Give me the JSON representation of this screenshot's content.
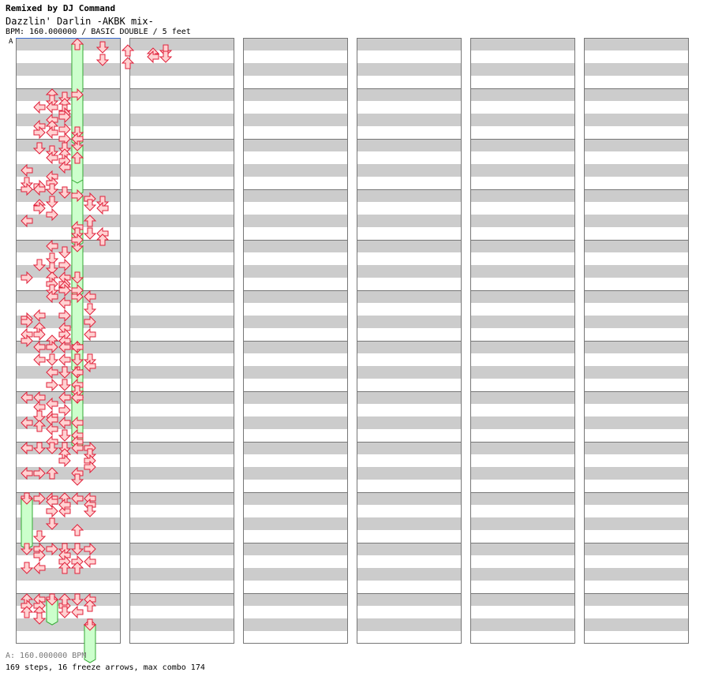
{
  "header": {
    "remix": "Remixed by DJ Command",
    "song_title": "Dazzlin' Darlin -AKBK mix-",
    "info": "BPM: 160.000000 / BASIC DOUBLE / 5 feet"
  },
  "bpm_marker": {
    "label": "A"
  },
  "footer": {
    "bpm_line": "A: 160.000000 BPM",
    "summary": "169 steps, 16 freeze arrows, max combo 174"
  },
  "colors": {
    "band": "#cccccc",
    "measure_line": "#777777",
    "arrow_fill": "#ffd2d2",
    "arrow_stroke": "#e0203a",
    "freeze_fill": "#ccffcc",
    "freeze_stroke": "#33aa33",
    "bpm_marker_line": "#3a6bd0"
  },
  "chart_data": {
    "type": "step-chart",
    "title": "Dazzlin' Darlin -AKBK mix-",
    "mode": "BASIC DOUBLE",
    "difficulty_feet": 5,
    "bpm": 160,
    "total_steps": 169,
    "freeze_arrows": 16,
    "max_combo": 174,
    "columns": 6,
    "measures_per_column": 12,
    "lanes": [
      "left",
      "down",
      "up",
      "right",
      "left",
      "down",
      "up",
      "right"
    ],
    "arrows": [
      [
        1,
        6,
        1,
        "down"
      ],
      [
        1,
        6,
        5,
        "down"
      ],
      [
        1,
        8,
        2,
        "up"
      ],
      [
        1,
        8,
        6,
        "up"
      ],
      [
        1,
        10,
        3,
        "up"
      ],
      [
        1,
        10,
        4,
        "left"
      ],
      [
        1,
        11,
        2,
        "down"
      ],
      [
        1,
        11,
        4,
        "down"
      ],
      [
        2,
        1,
        4,
        "left"
      ],
      [
        2,
        1,
        10,
        "left"
      ],
      [
        2,
        1,
        12,
        "right"
      ],
      [
        2,
        2,
        0,
        "up"
      ],
      [
        2,
        2,
        2,
        "down"
      ],
      [
        2,
        2,
        4,
        "left"
      ],
      [
        2,
        2,
        8,
        "left"
      ],
      [
        2,
        2,
        10,
        "up"
      ],
      [
        2,
        2,
        12,
        "left"
      ],
      [
        2,
        3,
        1,
        "down"
      ],
      [
        2,
        3,
        3,
        "up"
      ],
      [
        2,
        3,
        5,
        "down"
      ],
      [
        2,
        3,
        6,
        "right"
      ],
      [
        2,
        3,
        7,
        "right"
      ],
      [
        2,
        3,
        11,
        "right"
      ],
      [
        2,
        3,
        14,
        "right"
      ],
      [
        2,
        4,
        12,
        "down"
      ],
      [
        2,
        4,
        14,
        "left"
      ],
      [
        3,
        0,
        8,
        "left"
      ],
      [
        3,
        0,
        12,
        "down"
      ],
      [
        3,
        0,
        14,
        "right"
      ],
      [
        3,
        1,
        1,
        "down"
      ],
      [
        3,
        1,
        13,
        "right"
      ],
      [
        3,
        1,
        14,
        "left"
      ],
      [
        3,
        2,
        2,
        "down"
      ],
      [
        3,
        2,
        4,
        "left"
      ],
      [
        3,
        2,
        10,
        "left"
      ],
      [
        3,
        2,
        12,
        "right"
      ],
      [
        3,
        2,
        14,
        "down"
      ],
      [
        3,
        3,
        1,
        "down"
      ],
      [
        3,
        3,
        3,
        "up"
      ],
      [
        3,
        3,
        5,
        "right"
      ],
      [
        3,
        3,
        7,
        "left"
      ],
      [
        3,
        3,
        15,
        "down"
      ],
      [
        4,
        0,
        8,
        "left"
      ],
      [
        4,
        1,
        3,
        "up"
      ],
      [
        4,
        1,
        4,
        "right"
      ],
      [
        4,
        2,
        2,
        "down"
      ],
      [
        4,
        2,
        6,
        "right"
      ],
      [
        4,
        4,
        10,
        "left"
      ],
      [
        4,
        4,
        12,
        "down"
      ],
      [
        4,
        4,
        14,
        "right"
      ],
      [
        4,
        5,
        1,
        "right"
      ],
      [
        4,
        5,
        3,
        "down"
      ],
      [
        4,
        5,
        8,
        "up"
      ],
      [
        4,
        5,
        12,
        "down"
      ],
      [
        4,
        6,
        2,
        "down"
      ],
      [
        4,
        6,
        4,
        "left"
      ],
      [
        4,
        6,
        12,
        "left"
      ],
      [
        4,
        6,
        14,
        "up"
      ],
      [
        5,
        0,
        10,
        "right"
      ],
      [
        5,
        1,
        6,
        "down"
      ],
      [
        5,
        2,
        0,
        "left"
      ],
      [
        5,
        2,
        4,
        "down"
      ],
      [
        5,
        2,
        7,
        "down"
      ],
      [
        5,
        2,
        10,
        "up"
      ],
      [
        5,
        2,
        12,
        "right"
      ],
      [
        5,
        2,
        14,
        "down"
      ],
      [
        5,
        3,
        2,
        "down"
      ],
      [
        5,
        3,
        6,
        "right"
      ],
      [
        5,
        3,
        10,
        "left"
      ],
      [
        5,
        3,
        12,
        "right"
      ],
      [
        5,
        3,
        13,
        "up"
      ],
      [
        5,
        3,
        14,
        "right"
      ],
      [
        5,
        4,
        10,
        "down"
      ],
      [
        5,
        4,
        14,
        "right"
      ],
      [
        6,
        0,
        7,
        "right"
      ],
      [
        6,
        0,
        8,
        "right"
      ],
      [
        6,
        0,
        12,
        "left"
      ],
      [
        6,
        0,
        14,
        "right"
      ],
      [
        6,
        1,
        6,
        "left"
      ],
      [
        6,
        1,
        10,
        "up"
      ],
      [
        6,
        1,
        12,
        "right"
      ],
      [
        6,
        2,
        0,
        "left"
      ],
      [
        6,
        2,
        14,
        "up"
      ],
      [
        6,
        3,
        2,
        "left"
      ],
      [
        6,
        3,
        6,
        "right"
      ],
      [
        6,
        3,
        10,
        "left"
      ],
      [
        6,
        3,
        12,
        "right"
      ],
      [
        6,
        3,
        14,
        "left"
      ],
      [
        6,
        5,
        0,
        "left"
      ],
      [
        6,
        5,
        4,
        "down"
      ],
      [
        6,
        5,
        8,
        "right"
      ],
      [
        6,
        5,
        12,
        "left"
      ],
      [
        7,
        1,
        0,
        "left"
      ],
      [
        7,
        1,
        4,
        "left"
      ],
      [
        7,
        2,
        0,
        "right"
      ],
      [
        7,
        2,
        4,
        "down"
      ],
      [
        7,
        2,
        8,
        "left"
      ],
      [
        7,
        2,
        12,
        "right"
      ],
      [
        7,
        3,
        0,
        "left"
      ],
      [
        7,
        3,
        4,
        "left"
      ],
      [
        7,
        3,
        8,
        "down"
      ],
      [
        7,
        3,
        12,
        "down"
      ],
      [
        7,
        4,
        0,
        "left"
      ],
      [
        7,
        4,
        4,
        "down"
      ],
      [
        7,
        4,
        8,
        "left"
      ],
      [
        7,
        4,
        12,
        "left"
      ],
      [
        7,
        4,
        14,
        "down"
      ],
      [
        7,
        5,
        4,
        "down"
      ],
      [
        7,
        5,
        6,
        "left"
      ],
      [
        8,
        0,
        0,
        "left"
      ],
      [
        8,
        0,
        8,
        "left"
      ],
      [
        8,
        0,
        16,
        "left"
      ],
      [
        8,
        1,
        0,
        "left"
      ],
      [
        8,
        1,
        3,
        "left"
      ],
      [
        8,
        1,
        6,
        "down"
      ],
      [
        8,
        1,
        9,
        "up"
      ],
      [
        8,
        2,
        2,
        "left"
      ],
      [
        8,
        2,
        6,
        "left"
      ],
      [
        8,
        2,
        7,
        "left"
      ],
      [
        8,
        2,
        10,
        "left"
      ],
      [
        8,
        2,
        14,
        "left"
      ],
      [
        8,
        3,
        0,
        "left"
      ],
      [
        8,
        3,
        4,
        "right"
      ],
      [
        8,
        3,
        8,
        "left"
      ],
      [
        8,
        3,
        12,
        "down"
      ],
      [
        8,
        4,
        0,
        "left"
      ],
      [
        8,
        4,
        8,
        "left"
      ],
      [
        8,
        4,
        12,
        "left"
      ],
      [
        8,
        4,
        14,
        "left"
      ],
      [
        9,
        0,
        0,
        "left"
      ],
      [
        9,
        0,
        8,
        "left"
      ],
      [
        9,
        1,
        0,
        "down"
      ],
      [
        9,
        1,
        8,
        "right"
      ],
      [
        9,
        2,
        0,
        "down"
      ],
      [
        9,
        2,
        8,
        "up"
      ],
      [
        9,
        3,
        0,
        "down"
      ],
      [
        9,
        3,
        2,
        "up"
      ],
      [
        9,
        3,
        4,
        "right"
      ],
      [
        9,
        4,
        0,
        "left"
      ],
      [
        9,
        4,
        8,
        "left"
      ],
      [
        9,
        4,
        10,
        "down"
      ],
      [
        9,
        5,
        0,
        "right"
      ],
      [
        9,
        5,
        2,
        "down"
      ],
      [
        9,
        5,
        4,
        "right"
      ],
      [
        9,
        5,
        6,
        "right"
      ],
      [
        10,
        1,
        0,
        "right"
      ],
      [
        10,
        1,
        12,
        "down"
      ],
      [
        10,
        2,
        0,
        "left"
      ],
      [
        10,
        2,
        1,
        "left"
      ],
      [
        10,
        2,
        4,
        "right"
      ],
      [
        10,
        2,
        8,
        "down"
      ],
      [
        10,
        3,
        0,
        "up"
      ],
      [
        10,
        3,
        4,
        "left"
      ],
      [
        10,
        3,
        2,
        "left"
      ],
      [
        10,
        4,
        0,
        "left"
      ],
      [
        10,
        4,
        10,
        "up"
      ],
      [
        10,
        5,
        0,
        "left"
      ],
      [
        10,
        5,
        2,
        "left"
      ],
      [
        10,
        5,
        4,
        "down"
      ],
      [
        11,
        0,
        0,
        "down"
      ],
      [
        11,
        0,
        6,
        "down"
      ],
      [
        11,
        1,
        0,
        "right"
      ],
      [
        11,
        1,
        2,
        "right"
      ],
      [
        11,
        1,
        6,
        "left"
      ],
      [
        11,
        2,
        0,
        "right"
      ],
      [
        11,
        3,
        0,
        "down"
      ],
      [
        11,
        3,
        2,
        "left"
      ],
      [
        11,
        3,
        4,
        "right"
      ],
      [
        11,
        3,
        6,
        "up"
      ],
      [
        11,
        4,
        0,
        "down"
      ],
      [
        11,
        4,
        4,
        "right"
      ],
      [
        11,
        4,
        6,
        "up"
      ],
      [
        11,
        5,
        0,
        "right"
      ],
      [
        11,
        5,
        4,
        "left"
      ],
      [
        12,
        0,
        0,
        "up"
      ],
      [
        12,
        0,
        2,
        "right"
      ],
      [
        12,
        0,
        4,
        "up"
      ],
      [
        12,
        1,
        0,
        "left"
      ],
      [
        12,
        1,
        2,
        "right"
      ],
      [
        12,
        1,
        4,
        "up"
      ],
      [
        12,
        1,
        6,
        "down"
      ],
      [
        12,
        3,
        2,
        "right"
      ],
      [
        12,
        3,
        4,
        "down"
      ],
      [
        12,
        3,
        0,
        "up"
      ],
      [
        12,
        4,
        0,
        "down"
      ],
      [
        12,
        4,
        4,
        "left"
      ],
      [
        12,
        5,
        0,
        "left"
      ],
      [
        12,
        5,
        2,
        "up"
      ]
    ],
    "freezes": [
      [
        10,
        0,
        0,
        3,
        "right"
      ],
      [
        10,
        0,
        0,
        3,
        "down"
      ],
      [
        12,
        2,
        0,
        1,
        "right"
      ],
      [
        12,
        2,
        0,
        1,
        "down"
      ],
      [
        12,
        5,
        2,
        4,
        "up"
      ],
      [
        12,
        5,
        2,
        4,
        "down"
      ],
      [
        1,
        4,
        0,
        3,
        "up"
      ],
      [
        2,
        4,
        0,
        3,
        "right"
      ],
      [
        3,
        4,
        0,
        3,
        "down"
      ],
      [
        3,
        4,
        1,
        2,
        "up"
      ],
      [
        4,
        4,
        0,
        3,
        "right"
      ],
      [
        5,
        4,
        0,
        3,
        "down"
      ],
      [
        6,
        4,
        0,
        3,
        "right"
      ],
      [
        7,
        4,
        0,
        1,
        "right"
      ],
      [
        7,
        4,
        2,
        3,
        "down"
      ],
      [
        8,
        4,
        0,
        3,
        "down"
      ]
    ]
  }
}
